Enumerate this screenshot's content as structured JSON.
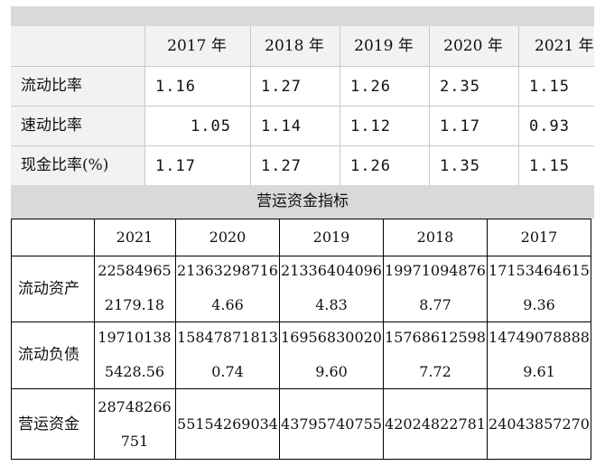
{
  "ratios": {
    "years": [
      "2017 年",
      "2018 年",
      "2019 年",
      "2020 年",
      "2021 年"
    ],
    "rows": [
      {
        "label": "流动比率",
        "values": [
          "1.16",
          "1.27",
          "1.26",
          "2.35",
          "1.15"
        ]
      },
      {
        "label": "速动比率",
        "values": [
          "1.05",
          "1.14",
          "1.12",
          "1.17",
          "0.93"
        ]
      },
      {
        "label": "现金比率(%)",
        "values": [
          "1.17",
          "1.27",
          "1.26",
          "1.35",
          "1.15"
        ]
      }
    ]
  },
  "working_capital": {
    "title": "营运资金指标",
    "years": [
      "2021",
      "2020",
      "2019",
      "2018",
      "2017"
    ],
    "rows": [
      {
        "label": "流动资产",
        "values": [
          [
            "22584965",
            "2179.18"
          ],
          [
            "21363298716",
            "4.66"
          ],
          [
            "21336404096",
            "4.83"
          ],
          [
            "19971094876",
            "8.77"
          ],
          [
            "17153464615",
            "9.36"
          ]
        ]
      },
      {
        "label": "流动负债",
        "values": [
          [
            "19710138",
            "5428.56"
          ],
          [
            "15847871813",
            "0.74"
          ],
          [
            "16956830020",
            "9.60"
          ],
          [
            "15768612598",
            "7.72"
          ],
          [
            "14749078888",
            "9.61"
          ]
        ]
      },
      {
        "label": "营运资金",
        "values": [
          [
            "28748266",
            "751"
          ],
          [
            "55154269034"
          ],
          [
            "43795740755"
          ],
          [
            "42024822781"
          ],
          [
            "24043857270"
          ]
        ]
      }
    ]
  }
}
